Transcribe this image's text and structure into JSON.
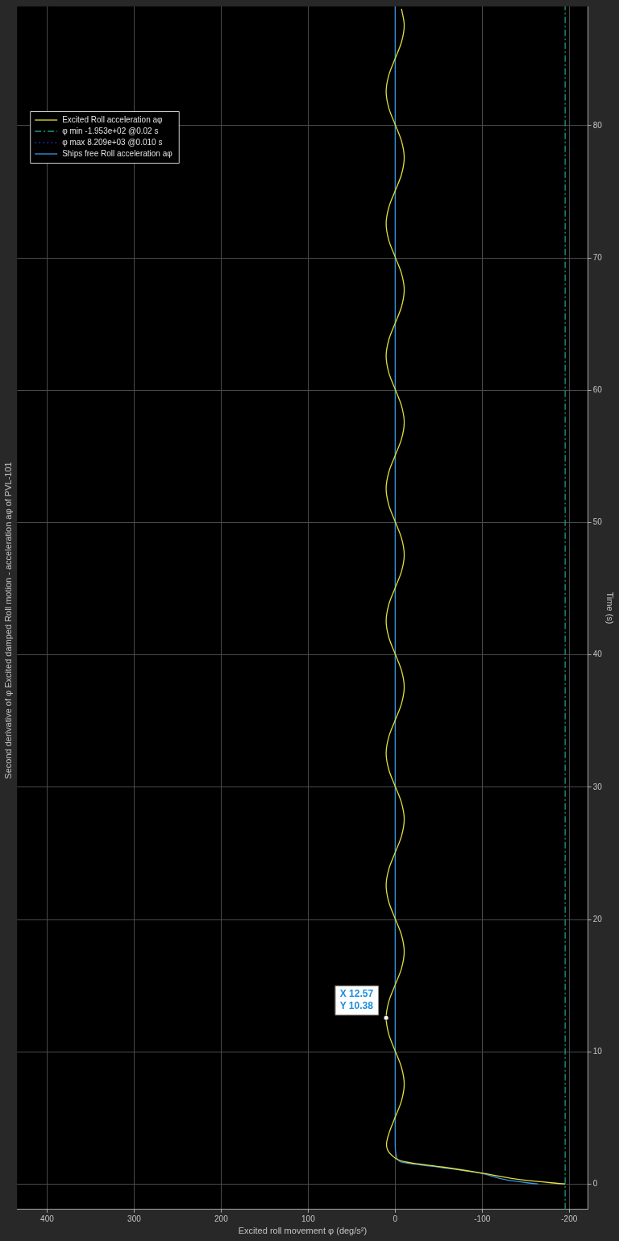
{
  "chart_data": {
    "type": "line",
    "title": "Second derivative of φ Excited damped Roll motion - acceleration aφ of PVL-101",
    "xlabel": "Excited roll movement φ (deg/s²)",
    "ylabel": "Time (s)",
    "xlim": [
      434.5,
      -221.7
    ],
    "ylim": [
      -1.9,
      89
    ],
    "xticks": [
      400,
      300,
      200,
      100,
      0,
      -100,
      -200
    ],
    "yticks": [
      0,
      10,
      20,
      30,
      40,
      50,
      60,
      70,
      80
    ],
    "grid": true,
    "legend": "top left",
    "marker": "none",
    "series": [
      {
        "name": "Excited Roll acceleration aφ",
        "color": "#e3df3c",
        "line_style": "solid",
        "x": [
          -195.3,
          -150,
          -99,
          -55,
          -11,
          4,
          10,
          7.3,
          0,
          -7.3,
          -10.4,
          -7.3,
          0,
          7.3,
          10.38,
          7.3,
          0,
          -7.3,
          -10.4,
          -7.3,
          0,
          7.3,
          10.4,
          7.3,
          0,
          -7.3,
          -10.4,
          -7.3,
          0,
          7.3,
          10.4,
          7.3,
          0,
          -7.3,
          -10.4,
          -7.3,
          0,
          7.3,
          10.4,
          7.3,
          0,
          -7.3,
          -10.4,
          -7.3,
          0,
          7.3,
          10.4,
          7.3,
          0,
          -7.3,
          -10.4,
          -7.3,
          0,
          7.3,
          10.4,
          7.3,
          0,
          -7.3,
          -10.4,
          -7.3,
          0,
          7.3,
          10.4,
          7.3,
          0,
          -7.3,
          -10.4,
          -7.3,
          0,
          7.3,
          10.4,
          7.3,
          0,
          -7.3,
          -10.4,
          -7.3
        ],
        "values": [
          0.02,
          0.3,
          0.85,
          1.3,
          1.7,
          2.2,
          3.0,
          3.82,
          5.07,
          6.32,
          7.57,
          8.82,
          10.07,
          11.32,
          12.57,
          13.82,
          15.07,
          16.32,
          17.57,
          18.82,
          20.07,
          21.32,
          22.57,
          23.82,
          25.07,
          26.32,
          27.57,
          28.82,
          30.07,
          31.32,
          32.57,
          33.82,
          35.07,
          36.32,
          37.57,
          38.82,
          40.07,
          41.32,
          42.57,
          43.82,
          45.07,
          46.32,
          47.57,
          48.82,
          50.07,
          51.32,
          52.57,
          53.82,
          55.07,
          56.32,
          57.57,
          58.82,
          60.07,
          61.32,
          62.57,
          63.82,
          65.07,
          66.32,
          67.57,
          68.82,
          70.07,
          71.32,
          72.57,
          73.82,
          75.07,
          76.32,
          77.57,
          78.82,
          80.07,
          81.32,
          82.57,
          83.82,
          85.07,
          86.32,
          87.57,
          88.82
        ]
      },
      {
        "name": "φ min -1.953e+02 @0.02 s",
        "color": "#1f9a86",
        "line_style": "dashed",
        "x": [
          -195.3,
          -195.3
        ],
        "values": [
          -1.9,
          89
        ]
      },
      {
        "name": "φ max 8.209e+03 @0.010 s",
        "color": "#1b2bb0",
        "line_style": "dotted",
        "x": [
          null,
          null
        ],
        "values": [
          null,
          null
        ]
      },
      {
        "name": "Ships free Roll acceleration aφ",
        "color": "#3a95e0",
        "line_style": "solid",
        "x": [
          -164,
          -130,
          -97,
          -50,
          -6,
          -1,
          0,
          0,
          0
        ],
        "values": [
          0.02,
          0.3,
          0.85,
          1.3,
          1.7,
          2.2,
          3.0,
          5.0,
          89
        ]
      }
    ],
    "annotations": [
      {
        "text": "X 12.57\nY 10.38",
        "x": 10.38,
        "y": 12.57
      }
    ]
  }
}
